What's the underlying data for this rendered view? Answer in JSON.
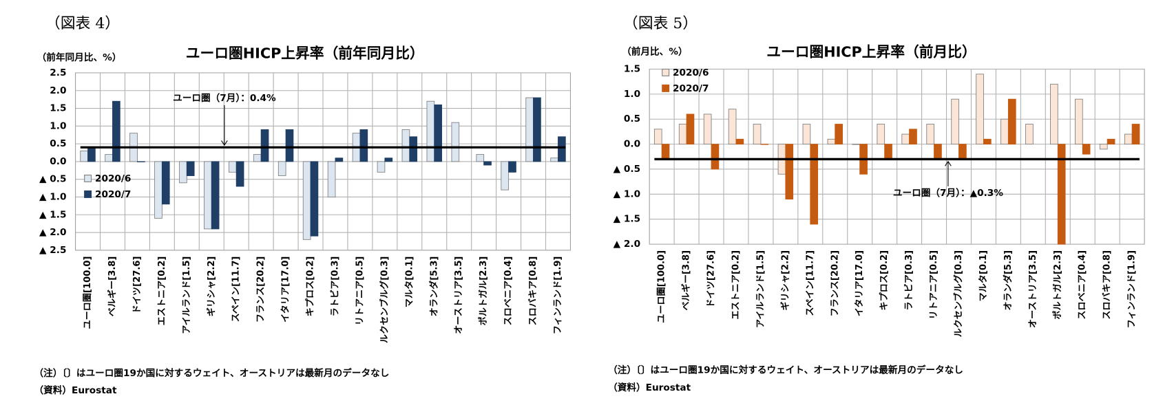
{
  "chart_data": [
    {
      "type": "bar",
      "figure_label": "（図表 4）",
      "title": "ユーロ圏HICP上昇率（前年同月比）",
      "y_label": "（前年同月比、%）",
      "categories": [
        "ユーロ圏[100.0]",
        "ベルギー[3.8]",
        "ドイツ[27.6]",
        "エストニア[0.2]",
        "アイルランド[1.5]",
        "ギリシャ[2.2]",
        "スペイン[11.7]",
        "フランス[20.2]",
        "イタリア[17.0]",
        "キプロス[0.2]",
        "ラトビア[0.3]",
        "リトアニア[0.5]",
        "ルクセンブルグ[0.3]",
        "マルタ[0.1]",
        "オランダ[5.3]",
        "オーストリア[3.5]",
        "ポルトガル[2.3]",
        "スロベニア[0.4]",
        "スロバキア[0.8]",
        "フィンランド[1.9]"
      ],
      "series": [
        {
          "name": "2020/6",
          "color": "#dce6f1",
          "values": [
            0.3,
            0.2,
            0.8,
            -1.6,
            -0.6,
            -1.9,
            -0.3,
            0.2,
            -0.4,
            -2.2,
            -1.0,
            0.8,
            -0.3,
            0.9,
            1.7,
            1.1,
            0.2,
            -0.8,
            1.8,
            0.1
          ]
        },
        {
          "name": "2020/7",
          "color": "#1f3f66",
          "values": [
            0.4,
            1.7,
            0.0,
            -1.2,
            -0.4,
            -1.9,
            -0.7,
            0.9,
            0.9,
            -2.1,
            0.1,
            0.9,
            0.1,
            0.7,
            1.6,
            null,
            -0.1,
            -0.3,
            1.8,
            0.7
          ]
        }
      ],
      "ylim": [
        -2.5,
        2.5
      ],
      "yticks": [
        {
          "value": -2.5,
          "label": "▲ 2.5"
        },
        {
          "value": -2,
          "label": "▲ 2.0"
        },
        {
          "value": -1.5,
          "label": "▲ 1.5"
        },
        {
          "value": -1,
          "label": "▲ 1.0"
        },
        {
          "value": -0.5,
          "label": "▲ 0.5"
        },
        {
          "value": 0,
          "label": "0.0"
        },
        0.5,
        {
          "value": 1,
          "label": "1.0"
        },
        1.5,
        {
          "value": 2,
          "label": "2.0"
        },
        2.5
      ],
      "grid": true,
      "legend": "lower left",
      "ref_line": {
        "value": 0.4,
        "label": "ユーロ圏（7月）：0.4%"
      },
      "notes": [
        "（注）〔〕はユーロ圏19か国に対するウェイト、オーストリアは最新月のデータなし",
        "（資料）Eurostat"
      ]
    },
    {
      "type": "bar",
      "figure_label": "（図表 5）",
      "title": "ユーロ圏HICP上昇率（前月比）",
      "y_label": "（前月比、%）",
      "categories": [
        "ユーロ圏[100.0]",
        "ベルギー[3.8]",
        "ドイツ[27.6]",
        "エストニア[0.2]",
        "アイルランド[1.5]",
        "ギリシャ[2.2]",
        "スペイン[11.7]",
        "フランス[20.2]",
        "イタリア[17.0]",
        "キプロス[0.2]",
        "ラトビア[0.3]",
        "リトアニア[0.5]",
        "ルクセンブルグ[0.3]",
        "マルタ[0.1]",
        "オランダ[5.3]",
        "オーストリア[3.5]",
        "ポルトガル[2.3]",
        "スロベニア[0.4]",
        "スロバキア[0.8]",
        "フィンランド[1.9]"
      ],
      "series": [
        {
          "name": "2020/6",
          "color": "#fbe5d6",
          "values": [
            0.3,
            0.4,
            0.6,
            0.7,
            0.4,
            -0.6,
            0.4,
            0.1,
            0.0,
            0.4,
            0.2,
            0.4,
            0.9,
            1.4,
            0.5,
            0.4,
            1.2,
            0.9,
            -0.1,
            0.2
          ]
        },
        {
          "name": "2020/7",
          "color": "#c55a11",
          "values": [
            -0.3,
            0.6,
            -0.5,
            0.1,
            0.0,
            -1.1,
            -1.6,
            0.4,
            -0.6,
            -0.3,
            0.3,
            -0.3,
            -0.3,
            0.1,
            0.9,
            null,
            -2.0,
            -0.2,
            0.1,
            0.4
          ]
        }
      ],
      "ylim": [
        -2,
        1.5
      ],
      "yticks": [
        {
          "value": -2,
          "label": "▲ 2.0"
        },
        {
          "value": -1.5,
          "label": "▲ 1.5"
        },
        {
          "value": -1,
          "label": "▲ 1.0"
        },
        {
          "value": -0.5,
          "label": "▲ 0.5"
        },
        {
          "value": 0,
          "label": "0.0"
        },
        0.5,
        {
          "value": 1,
          "label": "1.0"
        },
        1.5
      ],
      "grid": true,
      "legend": "upper left",
      "ref_line": {
        "value": -0.3,
        "label": "ユーロ圏（7月）：▲0.3%"
      },
      "notes": [
        "（注）〔〕はユーロ圏19か国に対するウェイト、オーストリアは最新月のデータなし",
        "（資料）Eurostat"
      ]
    }
  ]
}
